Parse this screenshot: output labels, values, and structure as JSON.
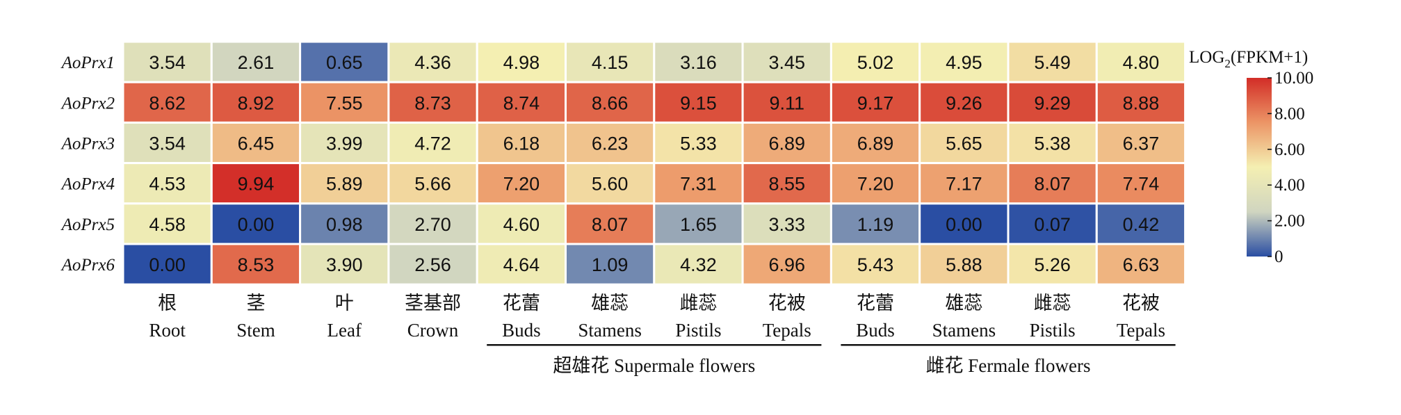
{
  "chart_data": {
    "type": "heatmap",
    "rows": [
      "AoPrx1",
      "AoPrx2",
      "AoPrx3",
      "AoPrx4",
      "AoPrx5",
      "AoPrx6"
    ],
    "columns": [
      {
        "zh": "根",
        "en": "Root"
      },
      {
        "zh": "茎",
        "en": "Stem"
      },
      {
        "zh": "叶",
        "en": "Leaf"
      },
      {
        "zh": "茎基部",
        "en": "Crown"
      },
      {
        "zh": "花蕾",
        "en": "Buds"
      },
      {
        "zh": "雄蕊",
        "en": "Stamens"
      },
      {
        "zh": "雌蕊",
        "en": "Pistils"
      },
      {
        "zh": "花被",
        "en": "Tepals"
      },
      {
        "zh": "花蕾",
        "en": "Buds"
      },
      {
        "zh": "雄蕊",
        "en": "Stamens"
      },
      {
        "zh": "雌蕊",
        "en": "Pistils"
      },
      {
        "zh": "花被",
        "en": "Tepals"
      }
    ],
    "values": [
      [
        "3.54",
        "2.61",
        "0.65",
        "4.36",
        "4.98",
        "4.15",
        "3.16",
        "3.45",
        "5.02",
        "4.95",
        "5.49",
        "4.80"
      ],
      [
        "8.62",
        "8.92",
        "7.55",
        "8.73",
        "8.74",
        "8.66",
        "9.15",
        "9.11",
        "9.17",
        "9.26",
        "9.29",
        "8.88"
      ],
      [
        "3.54",
        "6.45",
        "3.99",
        "4.72",
        "6.18",
        "6.23",
        "5.33",
        "6.89",
        "6.89",
        "5.65",
        "5.38",
        "6.37"
      ],
      [
        "4.53",
        "9.94",
        "5.89",
        "5.66",
        "7.20",
        "5.60",
        "7.31",
        "8.55",
        "7.20",
        "7.17",
        "8.07",
        "7.74"
      ],
      [
        "4.58",
        "0.00",
        "0.98",
        "2.70",
        "4.60",
        "8.07",
        "1.65",
        "3.33",
        "1.19",
        "0.00",
        "0.07",
        "0.42"
      ],
      [
        "0.00",
        "8.53",
        "3.90",
        "2.56",
        "4.64",
        "1.09",
        "4.32",
        "6.96",
        "5.43",
        "5.88",
        "5.26",
        "6.63"
      ]
    ],
    "groups": [
      {
        "label": "超雄花 Supermale flowers",
        "from_column": 4,
        "to_column": 7
      },
      {
        "label": "雌花 Fermale flowers",
        "from_column": 8,
        "to_column": 11
      }
    ],
    "colorbar": {
      "title_main": "LOG",
      "title_sub": "2",
      "title_rest": "(FPKM+1)",
      "range": [
        0,
        10
      ],
      "ticks": [
        "10.00",
        "8.00",
        "6.00",
        "4.00",
        "2.00",
        "0"
      ],
      "colors": {
        "low": "#2a4ea3",
        "mid_low": "#d0d5c0",
        "mid": "#f4efb2",
        "mid_high": "#ec9566",
        "high": "#d22d27"
      }
    }
  }
}
